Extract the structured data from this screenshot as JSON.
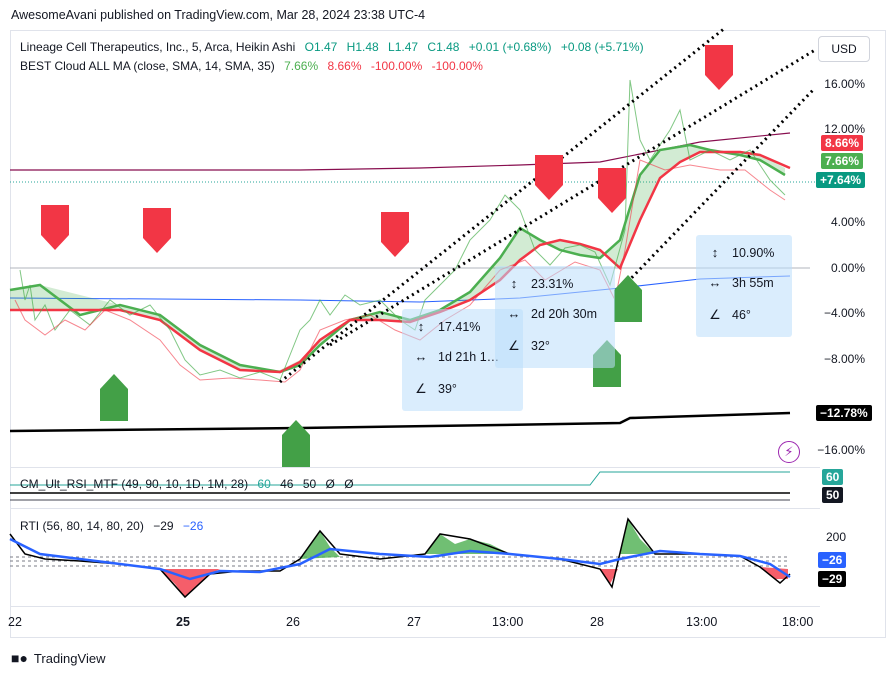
{
  "header": {
    "publisher_line": "AwesomeAvani published on TradingView.com, Mar 28, 2024 23:38 UTC-4"
  },
  "legend": {
    "symbol_line": {
      "title": "Lineage Cell Therapeutics, Inc., 5, Arca, Heikin Ashi",
      "o": "O1.47",
      "h": "H1.48",
      "l": "L1.47",
      "c": "C1.48",
      "change1": "+0.01 (+0.68%)",
      "change2": "+0.08 (+5.71%)"
    },
    "indicator_line": {
      "name": "BEST Cloud ALL MA (close, SMA, 14, SMA, 35)",
      "v1": "7.66%",
      "v2": "8.66%",
      "v3": "-100.00%",
      "v4": "-100.00%"
    }
  },
  "currency_button": "USD",
  "price_axis": {
    "ticks": [
      "16.00%",
      "12.00%",
      "4.00%",
      "0.00%",
      "−4.00%",
      "−8.00%",
      "−16.00%"
    ],
    "tag_red": "8.66%",
    "tag_green": "7.66%",
    "tag_price": "+7.64%",
    "tag_black": "−12.78%"
  },
  "measure_boxes": [
    {
      "pct": "17.41%",
      "time": "1d 21h 1…",
      "angle": "39°"
    },
    {
      "pct": "23.31%",
      "time": "2d 20h 30m",
      "angle": "32°"
    },
    {
      "pct": "10.90%",
      "time": "3h 55m",
      "angle": "46°"
    }
  ],
  "cm_pane": {
    "legend": "CM_Ult_RSI_MTF (49, 90, 10, 1D, 1M, 28)",
    "values": [
      "60",
      "46",
      "50",
      "Ø",
      "Ø"
    ],
    "tag_green": "60",
    "tag_black": "50"
  },
  "rti_pane": {
    "legend": "RTI (56, 80, 14, 80, 20)",
    "v1": "−29",
    "v2": "−26",
    "tick_200": "200",
    "tag_blue": "−26",
    "tag_black": "−29"
  },
  "time_axis": [
    "22",
    "25",
    "26",
    "27",
    "13:00",
    "28",
    "13:00",
    "18:00"
  ],
  "footer": {
    "brand": "TradingView"
  },
  "colors": {
    "green": "#4caf50",
    "red": "#f23645",
    "blue": "#2962ff",
    "dark": "#131722"
  }
}
